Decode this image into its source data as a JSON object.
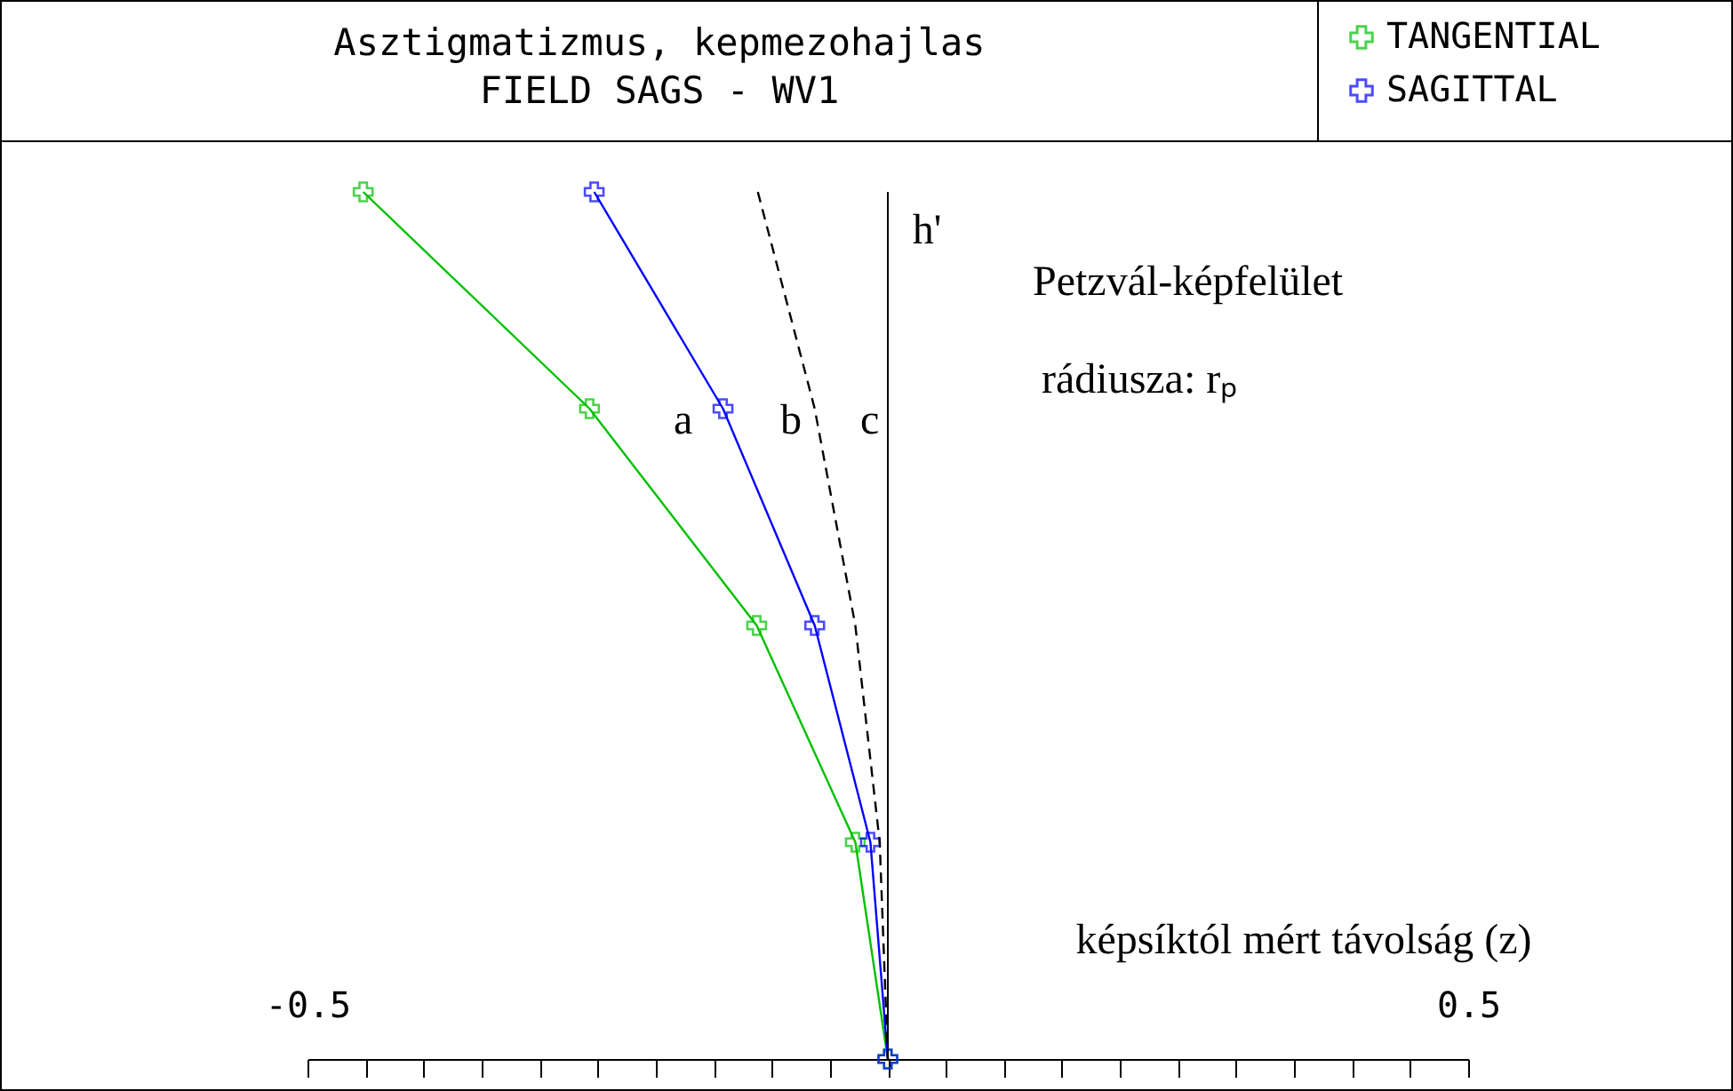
{
  "chart_data": {
    "type": "line",
    "orientation": "horizontal",
    "title": "Asztigmatizmus, kepmezohajlas",
    "subtitle": "FIELD SAGS - WV1",
    "xlabel": "képsíktól mért távolság (z)",
    "xlim": [
      -0.5,
      0.5
    ],
    "xticks": [
      -0.5,
      {
        "value": -0.45,
        "label": null
      },
      {
        "value": -0.4,
        "label": null
      },
      {
        "value": -0.35,
        "label": null
      },
      {
        "value": -0.3,
        "label": null
      },
      {
        "value": -0.25,
        "label": null
      },
      {
        "value": -0.2,
        "label": null
      },
      {
        "value": -0.15,
        "label": null
      },
      {
        "value": -0.1,
        "label": null
      },
      {
        "value": -0.05,
        "label": null
      },
      {
        "value": 0,
        "label": null
      },
      {
        "value": 0.05,
        "label": null
      },
      {
        "value": 0.1,
        "label": null
      },
      {
        "value": 0.15,
        "label": null
      },
      {
        "value": 0.2,
        "label": null
      },
      {
        "value": 0.25,
        "label": null
      },
      {
        "value": 0.3,
        "label": null
      },
      {
        "value": 0.35,
        "label": null
      },
      {
        "value": 0.4,
        "label": null
      },
      {
        "value": 0.45,
        "label": null
      },
      0.5
    ],
    "categories": [
      null,
      null,
      null,
      null,
      null
    ],
    "legend": "top right",
    "series": [
      {
        "name": "TANGENTIAL",
        "color": "#00c000",
        "marker": "cross",
        "values": [
          -0.452,
          -0.257,
          -0.113,
          -0.028,
          0
        ]
      },
      {
        "name": "SAGITTAL",
        "color": "#0000ff",
        "marker": "cross",
        "values": [
          -0.253,
          -0.142,
          -0.063,
          -0.015,
          0
        ]
      },
      {
        "color": "#000000",
        "marker": "none",
        "line_style": "dashed",
        "values": [
          -0.112,
          -0.063,
          -0.028,
          -0.007,
          0
        ]
      }
    ],
    "ref_lines": [
      {
        "axis": "x",
        "value": 0,
        "label": "h'"
      }
    ],
    "annotations": [
      "a",
      "b",
      "c",
      "Petzvál-képfelület",
      "rádiusza: rₚ"
    ]
  }
}
